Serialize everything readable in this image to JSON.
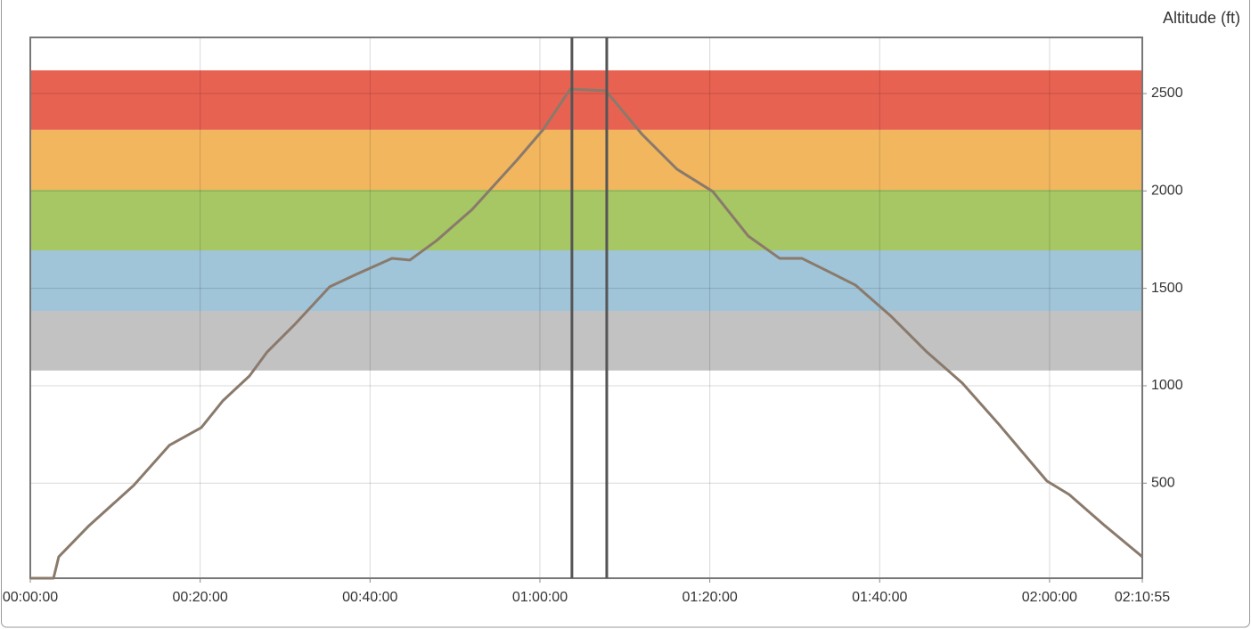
{
  "chart_data": {
    "type": "line",
    "title": "Altitude (ft)",
    "x": [
      0,
      164,
      201,
      415,
      730,
      982,
      1208,
      1359,
      1548,
      1674,
      1863,
      2115,
      2303,
      2555,
      2681,
      2870,
      3121,
      3436,
      3625,
      3814,
      4066,
      4317,
      4569,
      4821,
      5072,
      5293,
      5450,
      5639,
      5828,
      6080,
      6332,
      6583,
      6835,
      7181,
      7338,
      7590,
      7855
    ],
    "values": [
      12,
      12,
      122,
      282,
      488,
      694,
      785,
      922,
      1050,
      1174,
      1311,
      1508,
      1572,
      1654,
      1645,
      1745,
      1905,
      2157,
      2317,
      2523,
      2514,
      2294,
      2111,
      1997,
      1768,
      1654,
      1654,
      1586,
      1517,
      1357,
      1174,
      1014,
      808,
      511,
      442,
      282,
      122
    ],
    "color": "#8a7a6c",
    "xlim": [
      0,
      7855
    ],
    "xticks": [
      {
        "value": 0,
        "label": "00:00:00"
      },
      {
        "value": 1200,
        "label": "00:20:00"
      },
      {
        "value": 2400,
        "label": "00:40:00"
      },
      {
        "value": 3600,
        "label": "01:00:00"
      },
      {
        "value": 4800,
        "label": "01:20:00"
      },
      {
        "value": 6000,
        "label": "01:40:00"
      },
      {
        "value": 7200,
        "label": "02:00:00"
      },
      {
        "value": 7855,
        "label": "02:10:55"
      }
    ],
    "ylim": [
      12,
      2788
    ],
    "yticks": [
      500,
      1000,
      1500,
      2000,
      2500
    ],
    "grid": true,
    "bands": [
      {
        "from": 2313,
        "to": 2619,
        "color": "#e86252"
      },
      {
        "from": 2006,
        "to": 2313,
        "color": "#f2b65e"
      },
      {
        "from": 1695,
        "to": 2006,
        "color": "#a6c764"
      },
      {
        "from": 1384,
        "to": 1695,
        "color": "#a0c4d8"
      },
      {
        "from": 1078,
        "to": 1384,
        "color": "#c2c2c2"
      }
    ],
    "x_markers": [
      3826,
      4072
    ]
  }
}
